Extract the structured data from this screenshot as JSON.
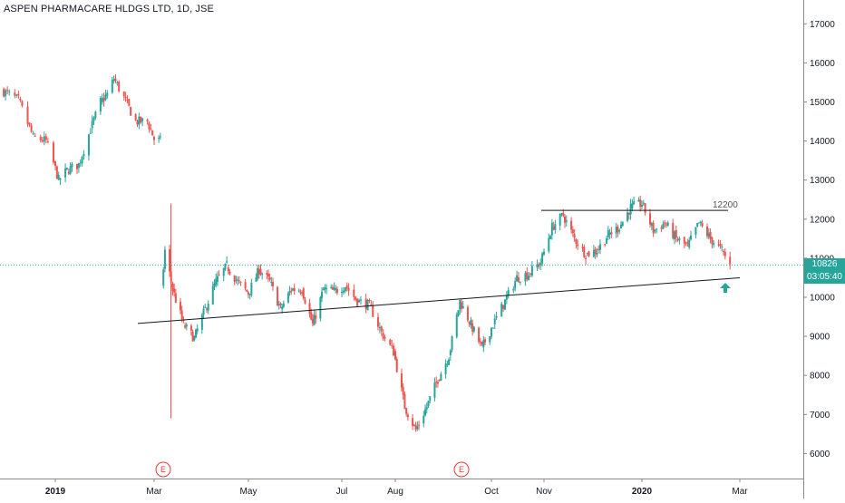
{
  "title": "ASPEN PHARMACARE HLDGS LTD, 1D, JSE",
  "colors": {
    "up": "#26a69a",
    "down": "#ef5350",
    "gap_line": "#ef5350",
    "last_price": "#26a69a",
    "trendline": "#131722",
    "event": "#e53935",
    "arrow": "#26a69a"
  },
  "chart_data": {
    "type": "candlestick",
    "title": "ASPEN PHARMACARE HLDGS LTD, 1D, JSE",
    "x_ticks": [
      "2019",
      "Mar",
      "May",
      "Jul",
      "Aug",
      "Oct",
      "Nov",
      "2020",
      "Mar"
    ],
    "x_ticks_bold": [
      "2019",
      "2020"
    ],
    "y_ticks": [
      6000,
      7000,
      8000,
      9000,
      10000,
      11000,
      12000,
      13000,
      14000,
      15000,
      16000,
      17000
    ],
    "ylim": [
      5600,
      17500
    ],
    "last_price": "10826",
    "countdown": "03:05:40",
    "annotations": [
      {
        "type": "horizontal_line",
        "label": "12200",
        "value": 12200,
        "from": "2019-11-01",
        "to": "2020-02-20"
      },
      {
        "type": "trend_line",
        "from": [
          "2019-02-12",
          9330
        ],
        "to": [
          "2020-03-01",
          10500
        ]
      },
      {
        "type": "event",
        "label": "E",
        "date": "2019-03-05"
      },
      {
        "type": "event",
        "label": "E",
        "date": "2019-09-10"
      },
      {
        "type": "arrow_up",
        "date": "2020-02-24",
        "value": 10350
      }
    ],
    "price_path": [
      [
        "2018-12-03",
        15300
      ],
      [
        "2018-12-12",
        15050
      ],
      [
        "2018-12-20",
        14100
      ],
      [
        "2018-12-27",
        14000
      ],
      [
        "2019-01-03",
        13000
      ],
      [
        "2019-01-08",
        13250
      ],
      [
        "2019-01-15",
        13400
      ],
      [
        "2019-01-22",
        14300
      ],
      [
        "2019-01-28",
        15000
      ],
      [
        "2019-02-01",
        15200
      ],
      [
        "2019-02-05",
        15600
      ],
      [
        "2019-02-11",
        15100
      ],
      [
        "2019-02-18",
        14500
      ],
      [
        "2019-02-25",
        14500
      ],
      [
        "2019-03-01",
        14050
      ],
      [
        "2019-03-05",
        14000
      ],
      [
        "2019-03-06",
        10300
      ],
      [
        "2019-03-08",
        11200
      ],
      [
        "2019-03-13",
        10200
      ],
      [
        "2019-03-20",
        9300
      ],
      [
        "2019-03-27",
        8950
      ],
      [
        "2019-04-03",
        9700
      ],
      [
        "2019-04-10",
        10400
      ],
      [
        "2019-04-17",
        10800
      ],
      [
        "2019-04-24",
        10400
      ],
      [
        "2019-05-01",
        10100
      ],
      [
        "2019-05-08",
        10700
      ],
      [
        "2019-05-15",
        10400
      ],
      [
        "2019-05-22",
        9700
      ],
      [
        "2019-05-29",
        10200
      ],
      [
        "2019-06-05",
        10200
      ],
      [
        "2019-06-12",
        9300
      ],
      [
        "2019-06-19",
        10200
      ],
      [
        "2019-06-26",
        10150
      ],
      [
        "2019-07-03",
        10300
      ],
      [
        "2019-07-10",
        9900
      ],
      [
        "2019-07-17",
        9800
      ],
      [
        "2019-07-24",
        9100
      ],
      [
        "2019-07-31",
        8600
      ],
      [
        "2019-08-07",
        7200
      ],
      [
        "2019-08-14",
        6600
      ],
      [
        "2019-08-21",
        7200
      ],
      [
        "2019-08-28",
        7900
      ],
      [
        "2019-09-04",
        8500
      ],
      [
        "2019-09-11",
        9900
      ],
      [
        "2019-09-18",
        9300
      ],
      [
        "2019-09-25",
        8700
      ],
      [
        "2019-10-02",
        9300
      ],
      [
        "2019-10-09",
        9900
      ],
      [
        "2019-10-16",
        10500
      ],
      [
        "2019-10-23",
        10600
      ],
      [
        "2019-10-30",
        10900
      ],
      [
        "2019-11-06",
        11800
      ],
      [
        "2019-11-13",
        12100
      ],
      [
        "2019-11-20",
        11500
      ],
      [
        "2019-11-27",
        11100
      ],
      [
        "2019-12-04",
        11200
      ],
      [
        "2019-12-11",
        11600
      ],
      [
        "2019-12-18",
        11800
      ],
      [
        "2019-12-25",
        12300
      ],
      [
        "2020-01-01",
        12400
      ],
      [
        "2020-01-08",
        11700
      ],
      [
        "2020-01-15",
        11900
      ],
      [
        "2020-01-22",
        11500
      ],
      [
        "2020-01-29",
        11300
      ],
      [
        "2020-02-05",
        11900
      ],
      [
        "2020-02-12",
        11500
      ],
      [
        "2020-02-19",
        11200
      ],
      [
        "2020-02-24",
        10826
      ]
    ]
  }
}
